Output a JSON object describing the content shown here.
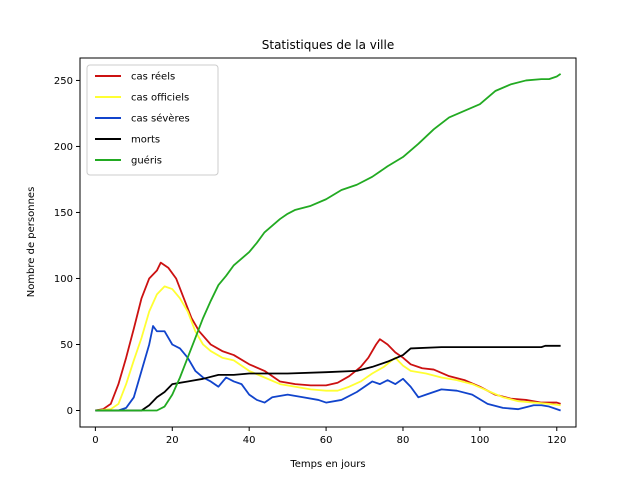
{
  "chart_data": {
    "type": "line",
    "title": "Statistiques de la ville",
    "xlabel": "Temps en jours",
    "ylabel": "Nombre de personnes",
    "xlim": [
      -4,
      125
    ],
    "ylim": [
      -12.5,
      267
    ],
    "xticks": [
      0,
      20,
      40,
      60,
      80,
      100,
      120
    ],
    "yticks": [
      0,
      50,
      100,
      150,
      200,
      250
    ],
    "grid": false,
    "legend_position": "top-left",
    "series": [
      {
        "name": "cas réels",
        "color": "#cc1111",
        "points": [
          [
            0,
            0
          ],
          [
            2,
            1
          ],
          [
            4,
            5
          ],
          [
            6,
            20
          ],
          [
            8,
            40
          ],
          [
            10,
            62
          ],
          [
            12,
            85
          ],
          [
            14,
            100
          ],
          [
            16,
            106
          ],
          [
            17,
            112
          ],
          [
            19,
            108
          ],
          [
            21,
            100
          ],
          [
            23,
            85
          ],
          [
            25,
            70
          ],
          [
            27,
            60
          ],
          [
            30,
            50
          ],
          [
            33,
            45
          ],
          [
            36,
            42
          ],
          [
            40,
            35
          ],
          [
            44,
            30
          ],
          [
            48,
            22
          ],
          [
            52,
            20
          ],
          [
            56,
            19
          ],
          [
            60,
            19
          ],
          [
            63,
            21
          ],
          [
            66,
            26
          ],
          [
            69,
            33
          ],
          [
            71,
            40
          ],
          [
            73,
            50
          ],
          [
            74,
            54
          ],
          [
            76,
            50
          ],
          [
            78,
            44
          ],
          [
            80,
            40
          ],
          [
            82,
            35
          ],
          [
            85,
            32
          ],
          [
            88,
            31
          ],
          [
            92,
            26
          ],
          [
            96,
            23
          ],
          [
            100,
            18
          ],
          [
            104,
            12
          ],
          [
            108,
            9
          ],
          [
            112,
            8
          ],
          [
            116,
            6
          ],
          [
            120,
            6
          ],
          [
            121,
            5
          ]
        ]
      },
      {
        "name": "cas officiels",
        "color": "#ffff33",
        "points": [
          [
            0,
            0
          ],
          [
            4,
            1
          ],
          [
            6,
            5
          ],
          [
            8,
            20
          ],
          [
            10,
            38
          ],
          [
            12,
            55
          ],
          [
            14,
            75
          ],
          [
            16,
            88
          ],
          [
            18,
            94
          ],
          [
            20,
            92
          ],
          [
            22,
            85
          ],
          [
            24,
            75
          ],
          [
            26,
            60
          ],
          [
            28,
            50
          ],
          [
            30,
            45
          ],
          [
            33,
            40
          ],
          [
            36,
            38
          ],
          [
            40,
            30
          ],
          [
            44,
            25
          ],
          [
            48,
            20
          ],
          [
            52,
            18
          ],
          [
            56,
            16
          ],
          [
            60,
            15
          ],
          [
            63,
            15
          ],
          [
            66,
            18
          ],
          [
            69,
            22
          ],
          [
            72,
            28
          ],
          [
            75,
            33
          ],
          [
            78,
            40
          ],
          [
            80,
            34
          ],
          [
            82,
            30
          ],
          [
            86,
            28
          ],
          [
            90,
            25
          ],
          [
            94,
            23
          ],
          [
            98,
            20
          ],
          [
            102,
            15
          ],
          [
            106,
            10
          ],
          [
            110,
            7
          ],
          [
            114,
            6
          ],
          [
            118,
            5
          ],
          [
            121,
            4
          ]
        ]
      },
      {
        "name": "cas sévères",
        "color": "#1144cc",
        "points": [
          [
            0,
            0
          ],
          [
            6,
            0
          ],
          [
            8,
            2
          ],
          [
            10,
            10
          ],
          [
            12,
            30
          ],
          [
            14,
            50
          ],
          [
            15,
            64
          ],
          [
            16,
            60
          ],
          [
            18,
            60
          ],
          [
            20,
            50
          ],
          [
            22,
            47
          ],
          [
            24,
            40
          ],
          [
            26,
            30
          ],
          [
            28,
            25
          ],
          [
            30,
            22
          ],
          [
            32,
            18
          ],
          [
            34,
            25
          ],
          [
            36,
            22
          ],
          [
            38,
            20
          ],
          [
            40,
            12
          ],
          [
            42,
            8
          ],
          [
            44,
            6
          ],
          [
            46,
            10
          ],
          [
            50,
            12
          ],
          [
            54,
            10
          ],
          [
            58,
            8
          ],
          [
            60,
            6
          ],
          [
            64,
            8
          ],
          [
            68,
            14
          ],
          [
            72,
            22
          ],
          [
            74,
            20
          ],
          [
            76,
            23
          ],
          [
            78,
            20
          ],
          [
            80,
            24
          ],
          [
            82,
            18
          ],
          [
            84,
            10
          ],
          [
            86,
            12
          ],
          [
            90,
            16
          ],
          [
            94,
            15
          ],
          [
            98,
            12
          ],
          [
            102,
            5
          ],
          [
            106,
            2
          ],
          [
            110,
            1
          ],
          [
            114,
            4
          ],
          [
            116,
            4
          ],
          [
            118,
            3
          ],
          [
            121,
            0
          ]
        ]
      },
      {
        "name": "morts",
        "color": "#000000",
        "points": [
          [
            0,
            0
          ],
          [
            12,
            0
          ],
          [
            14,
            4
          ],
          [
            16,
            10
          ],
          [
            18,
            14
          ],
          [
            20,
            20
          ],
          [
            24,
            22
          ],
          [
            28,
            24
          ],
          [
            32,
            27
          ],
          [
            36,
            27
          ],
          [
            40,
            28
          ],
          [
            50,
            28
          ],
          [
            60,
            29
          ],
          [
            68,
            30
          ],
          [
            72,
            33
          ],
          [
            76,
            37
          ],
          [
            80,
            42
          ],
          [
            82,
            47
          ],
          [
            90,
            48
          ],
          [
            100,
            48
          ],
          [
            110,
            48
          ],
          [
            116,
            48
          ],
          [
            117,
            49
          ],
          [
            121,
            49
          ]
        ]
      },
      {
        "name": "guéris",
        "color": "#22aa22",
        "points": [
          [
            0,
            0
          ],
          [
            16,
            0
          ],
          [
            18,
            3
          ],
          [
            20,
            12
          ],
          [
            22,
            25
          ],
          [
            24,
            40
          ],
          [
            26,
            55
          ],
          [
            28,
            70
          ],
          [
            30,
            83
          ],
          [
            32,
            95
          ],
          [
            34,
            102
          ],
          [
            36,
            110
          ],
          [
            38,
            115
          ],
          [
            40,
            120
          ],
          [
            42,
            127
          ],
          [
            44,
            135
          ],
          [
            46,
            140
          ],
          [
            48,
            145
          ],
          [
            50,
            149
          ],
          [
            52,
            152
          ],
          [
            56,
            155
          ],
          [
            60,
            160
          ],
          [
            64,
            167
          ],
          [
            68,
            171
          ],
          [
            72,
            177
          ],
          [
            76,
            185
          ],
          [
            80,
            192
          ],
          [
            84,
            202
          ],
          [
            88,
            213
          ],
          [
            92,
            222
          ],
          [
            96,
            227
          ],
          [
            100,
            232
          ],
          [
            104,
            242
          ],
          [
            108,
            247
          ],
          [
            112,
            250
          ],
          [
            116,
            251
          ],
          [
            118,
            251
          ],
          [
            120,
            253
          ],
          [
            121,
            255
          ]
        ]
      }
    ]
  }
}
